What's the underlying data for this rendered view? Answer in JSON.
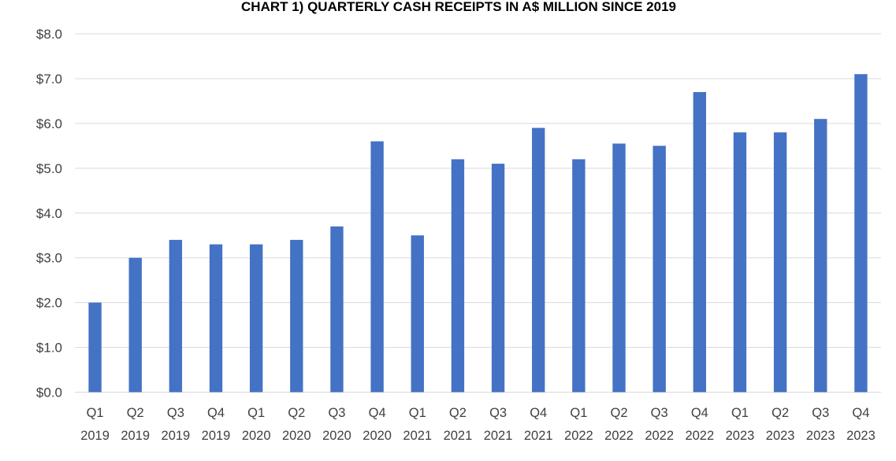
{
  "chart_data": {
    "type": "bar",
    "title": "CHART 1) QUARTERLY CASH RECEIPTS IN A$ MILLION SINCE 2019",
    "xlabel": "",
    "ylabel": "",
    "ylim": [
      0,
      8
    ],
    "yticks": [
      "$0.0",
      "$1.0",
      "$2.0",
      "$3.0",
      "$4.0",
      "$5.0",
      "$6.0",
      "$7.0",
      "$8.0"
    ],
    "grid": true,
    "legend": "none",
    "bar_color": "#4472c4",
    "categories": [
      {
        "quarter": "Q1",
        "year": "2019"
      },
      {
        "quarter": "Q2",
        "year": "2019"
      },
      {
        "quarter": "Q3",
        "year": "2019"
      },
      {
        "quarter": "Q4",
        "year": "2019"
      },
      {
        "quarter": "Q1",
        "year": "2020"
      },
      {
        "quarter": "Q2",
        "year": "2020"
      },
      {
        "quarter": "Q3",
        "year": "2020"
      },
      {
        "quarter": "Q4",
        "year": "2020"
      },
      {
        "quarter": "Q1",
        "year": "2021"
      },
      {
        "quarter": "Q2",
        "year": "2021"
      },
      {
        "quarter": "Q3",
        "year": "2021"
      },
      {
        "quarter": "Q4",
        "year": "2021"
      },
      {
        "quarter": "Q1",
        "year": "2022"
      },
      {
        "quarter": "Q2",
        "year": "2022"
      },
      {
        "quarter": "Q3",
        "year": "2022"
      },
      {
        "quarter": "Q4",
        "year": "2022"
      },
      {
        "quarter": "Q1",
        "year": "2023"
      },
      {
        "quarter": "Q2",
        "year": "2023"
      },
      {
        "quarter": "Q3",
        "year": "2023"
      },
      {
        "quarter": "Q4",
        "year": "2023"
      }
    ],
    "values": [
      2.0,
      3.0,
      3.4,
      3.3,
      3.3,
      3.4,
      3.7,
      5.6,
      3.5,
      5.2,
      5.1,
      5.9,
      5.2,
      5.55,
      5.5,
      6.7,
      5.8,
      5.8,
      6.1,
      7.1
    ]
  }
}
